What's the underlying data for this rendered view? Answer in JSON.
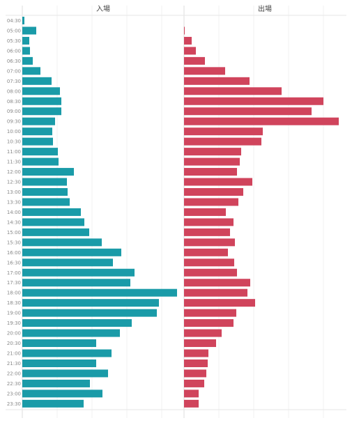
{
  "chart_data": {
    "type": "bar",
    "orientation": "horizontal",
    "grid": true,
    "categories": [
      "04:30",
      "05:00",
      "05:30",
      "06:00",
      "06:30",
      "07:00",
      "07:30",
      "08:00",
      "08:30",
      "09:00",
      "09:30",
      "10:00",
      "10:30",
      "11:00",
      "11:30",
      "12:00",
      "12:30",
      "13:00",
      "13:30",
      "14:00",
      "14:30",
      "15:00",
      "15:30",
      "16:00",
      "16:30",
      "17:00",
      "17:30",
      "18:00",
      "18:30",
      "19:00",
      "19:30",
      "20:00",
      "20:30",
      "21:00",
      "21:30",
      "22:00",
      "22:30",
      "23:00",
      "23:30"
    ],
    "series": [
      {
        "name": "入場",
        "color": "#1a9ba8",
        "values": [
          3,
          20,
          10,
          11,
          15,
          26,
          42,
          54,
          56,
          56,
          47,
          43,
          44,
          51,
          52,
          74,
          64,
          65,
          68,
          84,
          89,
          96,
          114,
          142,
          130,
          161,
          155,
          222,
          196,
          193,
          157,
          140,
          106,
          128,
          106,
          123,
          97,
          115,
          88
        ]
      },
      {
        "name": "出場",
        "color": "#d0445c",
        "values": [
          0,
          1,
          11,
          17,
          30,
          59,
          94,
          140,
          200,
          183,
          222,
          113,
          111,
          82,
          80,
          76,
          98,
          85,
          78,
          60,
          71,
          66,
          73,
          63,
          72,
          76,
          95,
          91,
          102,
          75,
          71,
          54,
          46,
          35,
          34,
          32,
          29,
          21,
          21
        ]
      }
    ],
    "xlim": [
      0,
      230
    ]
  }
}
